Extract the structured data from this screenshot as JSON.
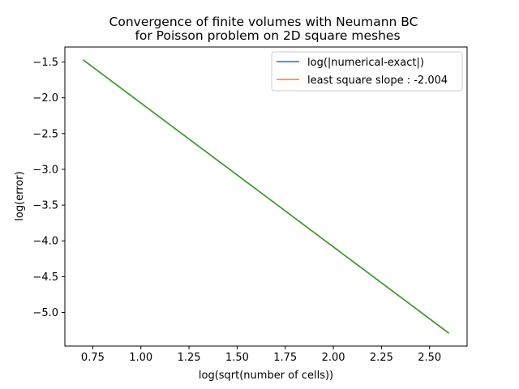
{
  "chart_data": {
    "type": "line",
    "title_line1": "Convergence of finite volumes with Neumann BC",
    "title_line2": "for Poisson problem  on 2D square meshes",
    "xlabel": "log(sqrt(number of cells))",
    "ylabel": "log(error)",
    "xlim": [
      0.605,
      2.695
    ],
    "ylim": [
      -5.47,
      -1.29
    ],
    "xticks": [
      0.75,
      1.0,
      1.25,
      1.5,
      1.75,
      2.0,
      2.25,
      2.5
    ],
    "xtick_labels": [
      "0.75",
      "1.00",
      "1.25",
      "1.50",
      "1.75",
      "2.00",
      "2.25",
      "2.50"
    ],
    "yticks": [
      -1.5,
      -2.0,
      -2.5,
      -3.0,
      -3.5,
      -4.0,
      -4.5,
      -5.0
    ],
    "ytick_labels": [
      "−1.5",
      "−2.0",
      "−2.5",
      "−3.0",
      "−3.5",
      "−4.0",
      "−4.5",
      "−5.0"
    ],
    "legend_placement": "top-right",
    "grid": false,
    "series": [
      {
        "name": "log(|numerical-exact|)",
        "color": "#1f77b4",
        "x": [
          0.7,
          2.6
        ],
        "y": [
          -1.47,
          -5.29
        ]
      },
      {
        "name": "least square slope : -2.004",
        "color": "#ff7f0e",
        "x": [
          0.7,
          2.6
        ],
        "y": [
          -1.47,
          -5.29
        ]
      },
      {
        "color": "#2ca02c",
        "x": [
          0.7,
          2.6
        ],
        "y": [
          -1.47,
          -5.29
        ]
      }
    ]
  }
}
